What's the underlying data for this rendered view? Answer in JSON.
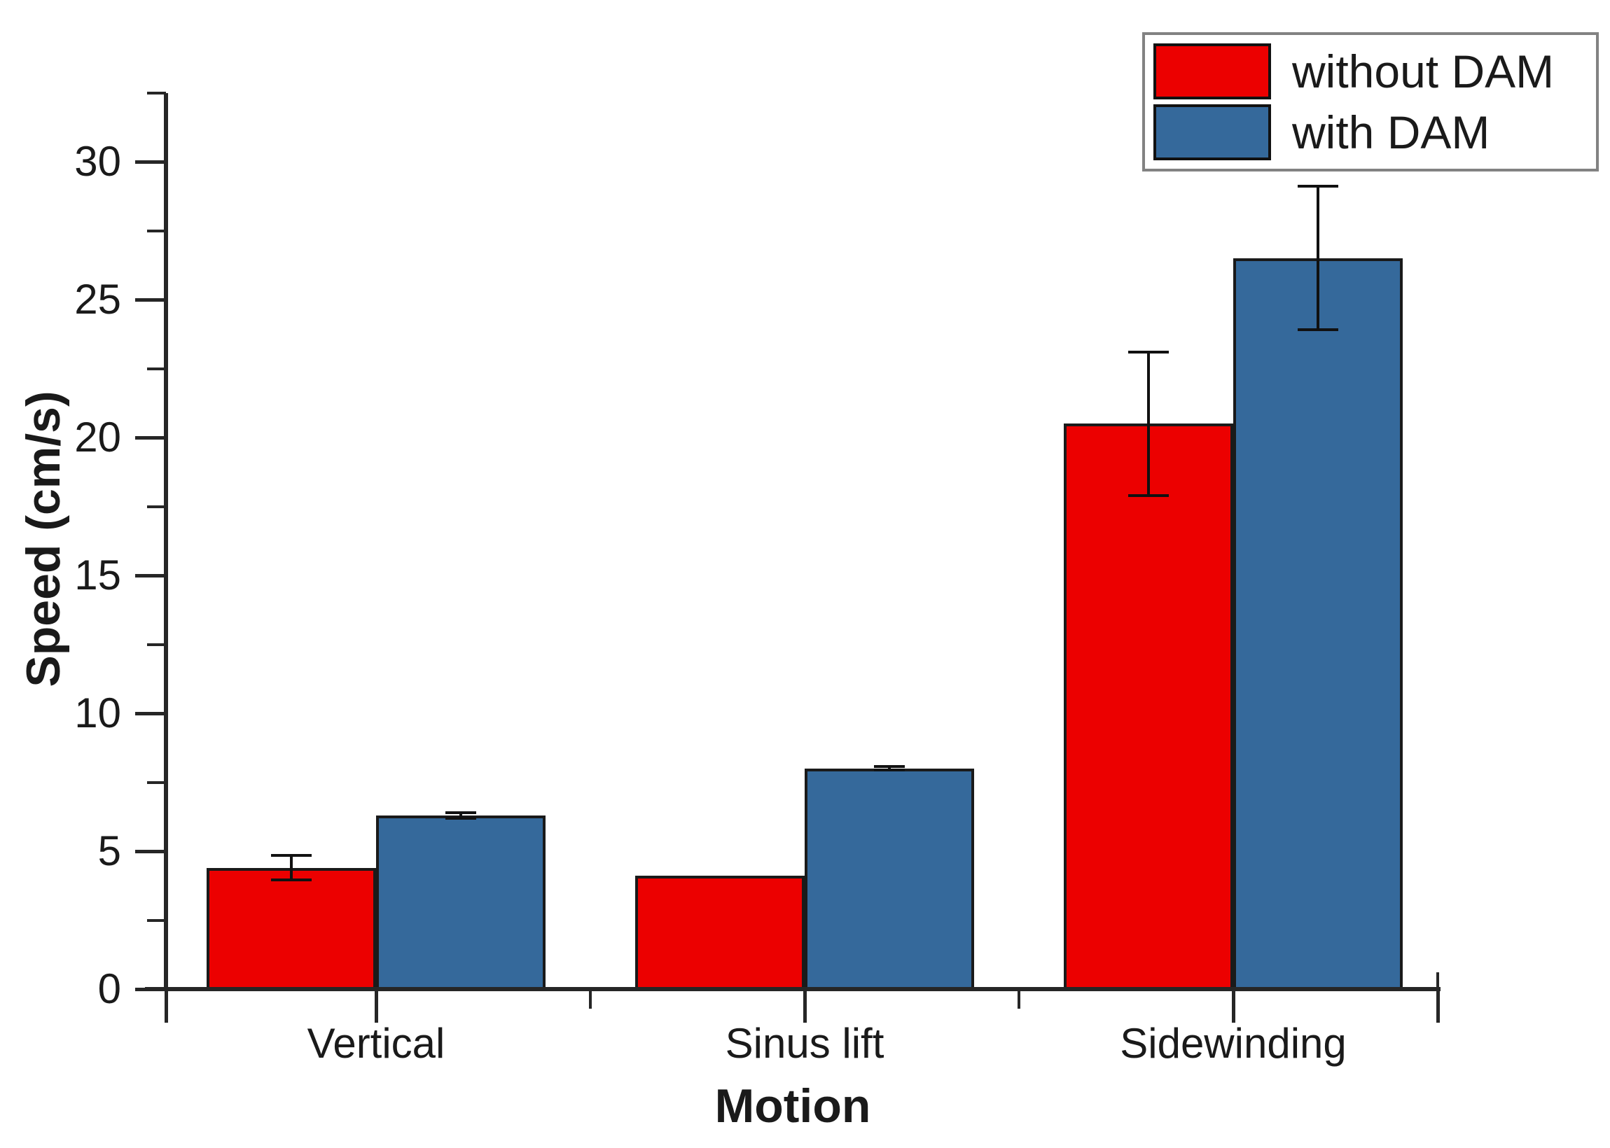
{
  "chart_data": {
    "type": "bar",
    "title": "",
    "xlabel": "Motion",
    "ylabel": "Speed (cm/s)",
    "categories": [
      "Vertical",
      "Sinus lift",
      "Sidewinding"
    ],
    "series": [
      {
        "name": "without DAM",
        "color": "#ec0000",
        "values": [
          4.4,
          4.1,
          20.5
        ],
        "errors": [
          0.45,
          0,
          2.6
        ]
      },
      {
        "name": "with DAM",
        "color": "#35699b",
        "values": [
          6.3,
          8.0,
          26.5
        ],
        "errors": [
          0.1,
          0.06,
          2.6
        ]
      }
    ],
    "ylim": [
      0,
      32.5
    ],
    "yticks": [
      0,
      5,
      10,
      15,
      20,
      25,
      30
    ],
    "minor_tick_step": 2.5,
    "grid": false,
    "legend_position": "top-right",
    "bar_border_color": "#1a1a1a",
    "axis_color": "#262626",
    "error_bar_color": "#111111",
    "text_color": "#1a1a1a",
    "legend_border_color": "#828282",
    "background_color": "#ffffff"
  }
}
